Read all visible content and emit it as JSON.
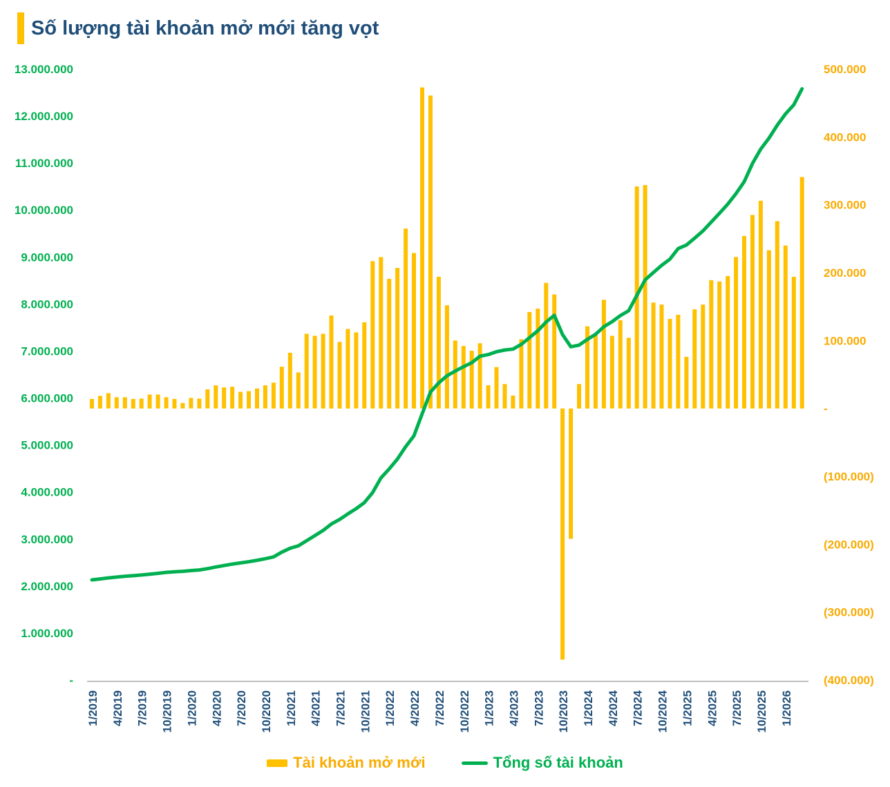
{
  "title": {
    "text": "Số lượng tài khoản mở mới tăng vọt"
  },
  "legend": {
    "bars": "Tài khoản mở mới",
    "line": "Tổng số tài khoản"
  },
  "colors": {
    "gold": "#FFC000",
    "gold_text": "#F9AB00",
    "green": "#00B050",
    "navy": "#1F4E79",
    "axis_gray": "#BFBFBF"
  },
  "chart_data": {
    "type": "bar",
    "subtype": "combo-bar-line-dual-axis",
    "title": "Số lượng tài khoản mở mới tăng vọt",
    "start_month": "1/2019",
    "end_month": "3/2026",
    "grid": false,
    "legend_position": "bottom",
    "x_tick_labels": [
      "1/2019",
      "4/2019",
      "7/2019",
      "10/2019",
      "1/2020",
      "4/2020",
      "7/2020",
      "10/2020",
      "1/2021",
      "4/2021",
      "7/2021",
      "10/2021",
      "1/2022",
      "4/2022",
      "7/2022",
      "10/2022",
      "1/2023",
      "4/2023",
      "7/2023",
      "10/2023",
      "1/2024",
      "4/2024",
      "7/2024",
      "10/2024",
      "1/2025",
      "4/2025",
      "7/2025",
      "10/2025",
      "1/2026"
    ],
    "left_axis": {
      "max": 13000000,
      "min": 0,
      "step": 1000000,
      "labels": [
        "13.000.000",
        "12.000.000",
        "11.000.000",
        "10.000.000",
        "9.000.000",
        "8.000.000",
        "7.000.000",
        "6.000.000",
        "5.000.000",
        "4.000.000",
        "3.000.000",
        "2.000.000",
        "1.000.000",
        "-"
      ]
    },
    "right_axis": {
      "max": 500000,
      "min": -400000,
      "step": 100000,
      "labels": [
        "500.000",
        "400.000",
        "300.000",
        "200.000",
        "100.000",
        "-",
        "(100.000)",
        "(200.000)",
        "(300.000)",
        "(400.000)"
      ]
    },
    "series": [
      {
        "name": "Tài khoản mở mới",
        "type": "bar",
        "axis": "right",
        "color": "#FFC000",
        "values": [
          14000,
          18500,
          22500,
          16500,
          16500,
          14000,
          14500,
          20500,
          20500,
          16500,
          14000,
          8000,
          15500,
          14500,
          28000,
          34000,
          31000,
          32000,
          24500,
          25500,
          29500,
          34000,
          38000,
          61500,
          82000,
          53000,
          110000,
          107000,
          110000,
          137000,
          98000,
          117000,
          112000,
          127000,
          217000,
          223000,
          191000,
          207000,
          265000,
          229000,
          473000,
          461000,
          194000,
          152000,
          100000,
          92000,
          85000,
          96000,
          34000,
          61000,
          36000,
          19000,
          102000,
          142000,
          147000,
          185000,
          168000,
          -370000,
          -192000,
          36000,
          121000,
          110000,
          160000,
          107000,
          130000,
          104000,
          327000,
          329000,
          156000,
          153000,
          132000,
          138000,
          76000,
          146000,
          153000,
          189000,
          187000,
          195000,
          223000,
          254000,
          285000,
          306000,
          233000,
          276000,
          240000,
          194000,
          341000
        ]
      },
      {
        "name": "Tổng số tài khoản",
        "type": "line",
        "axis": "left",
        "color": "#00B050",
        "values": [
          2130000,
          2150000,
          2172000,
          2190000,
          2206000,
          2220000,
          2234000,
          2250000,
          2270000,
          2290000,
          2304000,
          2312000,
          2328000,
          2342000,
          2370000,
          2404000,
          2435000,
          2467000,
          2492000,
          2517000,
          2547000,
          2581000,
          2619000,
          2720000,
          2802000,
          2855000,
          2965000,
          3072000,
          3182000,
          3319000,
          3417000,
          3534000,
          3646000,
          3773000,
          3990000,
          4300000,
          4490000,
          4700000,
          4965000,
          5194000,
          5667000,
          6128000,
          6322000,
          6474000,
          6574000,
          6666000,
          6751000,
          6890000,
          6924000,
          6985000,
          7021000,
          7040000,
          7142000,
          7284000,
          7431000,
          7616000,
          7760000,
          7350000,
          7090000,
          7126000,
          7247000,
          7357000,
          7517000,
          7624000,
          7754000,
          7858000,
          8185000,
          8514000,
          8670000,
          8823000,
          8955000,
          9180000,
          9256000,
          9402000,
          9555000,
          9744000,
          9931000,
          10126000,
          10349000,
          10603000,
          10990000,
          11296000,
          11529000,
          11805000,
          12045000,
          12239000,
          12580000
        ]
      }
    ]
  }
}
